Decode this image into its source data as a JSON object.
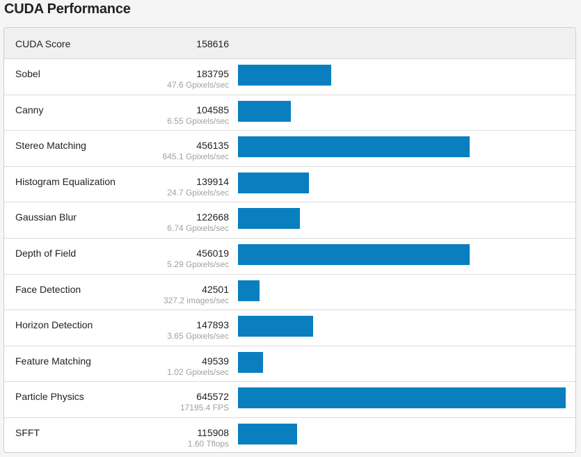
{
  "page_title": "CUDA Performance",
  "summary": {
    "label": "CUDA Score",
    "score": "158616"
  },
  "colors": {
    "bar": "#0a7fc0"
  },
  "bar_scale_max": 645572,
  "rows": [
    {
      "name": "Sobel",
      "score": "183795",
      "detail": "47.6 Gpixels/sec",
      "value": 183795
    },
    {
      "name": "Canny",
      "score": "104585",
      "detail": "6.55 Gpixels/sec",
      "value": 104585
    },
    {
      "name": "Stereo Matching",
      "score": "456135",
      "detail": "645.1 Gpixels/sec",
      "value": 456135
    },
    {
      "name": "Histogram Equalization",
      "score": "139914",
      "detail": "24.7 Gpixels/sec",
      "value": 139914
    },
    {
      "name": "Gaussian Blur",
      "score": "122668",
      "detail": "6.74 Gpixels/sec",
      "value": 122668
    },
    {
      "name": "Depth of Field",
      "score": "456019",
      "detail": "5.29 Gpixels/sec",
      "value": 456019
    },
    {
      "name": "Face Detection",
      "score": "42501",
      "detail": "327.2 images/sec",
      "value": 42501
    },
    {
      "name": "Horizon Detection",
      "score": "147893",
      "detail": "3.65 Gpixels/sec",
      "value": 147893
    },
    {
      "name": "Feature Matching",
      "score": "49539",
      "detail": "1.02 Gpixels/sec",
      "value": 49539
    },
    {
      "name": "Particle Physics",
      "score": "645572",
      "detail": "17195.4 FPS",
      "value": 645572
    },
    {
      "name": "SFFT",
      "score": "115908",
      "detail": "1.60 Tflops",
      "value": 115908
    }
  ]
}
